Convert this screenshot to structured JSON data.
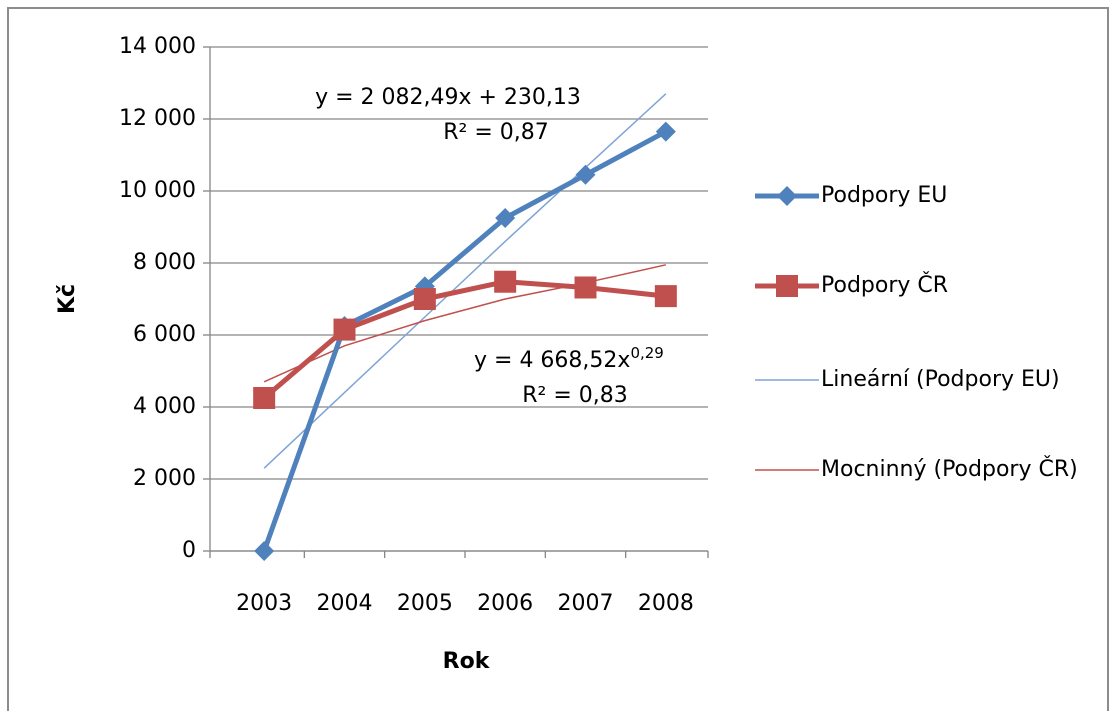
{
  "chart_data": {
    "type": "line",
    "x_label": "Rok",
    "y_label": "Kč",
    "categories": [
      "2003",
      "2004",
      "2005",
      "2006",
      "2007",
      "2008"
    ],
    "series": [
      {
        "name": "Podpory EU",
        "color": "#4f81bd",
        "marker": "diamond",
        "values": [
          0,
          6250,
          7350,
          9250,
          10450,
          11650
        ]
      },
      {
        "name": "Podpory ČR",
        "color": "#c0504d",
        "marker": "square",
        "values": [
          4250,
          6150,
          7000,
          7480,
          7320,
          7080
        ]
      },
      {
        "name": "Lineární (Podpory EU)",
        "color": "#7ea4d6",
        "trendline": true,
        "values": [
          2300,
          4400,
          6500,
          8600,
          10650,
          12700
        ]
      },
      {
        "name": "Mocninný (Podpory ČR)",
        "color": "#c0504d",
        "trendline": true,
        "values": [
          4700,
          5700,
          6400,
          7000,
          7450,
          7950
        ]
      }
    ],
    "annotations": [
      {
        "text": "y = 2 082,49x + 230,13"
      },
      {
        "text": "R² = 0,87"
      },
      {
        "text": "y = 4 668,52x",
        "sup": "0,29"
      },
      {
        "text": "R² = 0,83"
      }
    ],
    "ylim": [
      0,
      14000
    ],
    "yticks": [
      0,
      {
        "value": 2000,
        "label": "2 000"
      },
      {
        "value": 4000,
        "label": "4 000"
      },
      {
        "value": 6000,
        "label": "6 000"
      },
      {
        "value": 8000,
        "label": "8 000"
      },
      {
        "value": 10000,
        "label": "10 000"
      },
      {
        "value": 12000,
        "label": "12 000"
      },
      {
        "value": 14000,
        "label": "14 000"
      }
    ],
    "grid": true,
    "legend": "right"
  }
}
